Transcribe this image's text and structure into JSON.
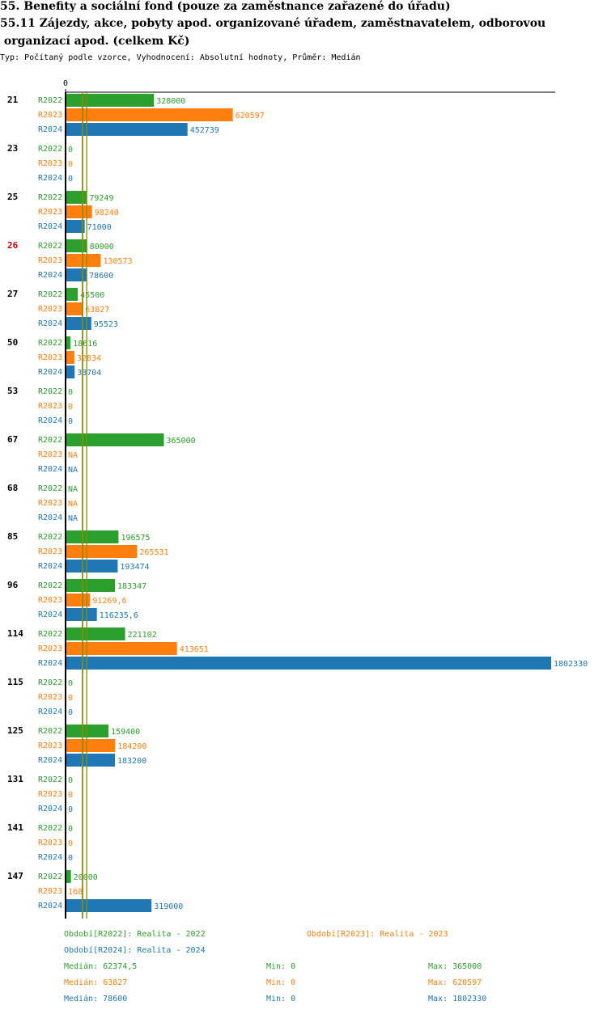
{
  "header": {
    "title_line1": "55. Benefity a sociální fond (pouze za zaměstnance zařazené do úřadu)",
    "title_line2": "55.11 Zájezdy, akce, pobyty apod. organizované úřadem, zaměstnavatelem, odborovou",
    "title_line3": " organizací apod. (celkem Kč)",
    "subtitle": "Typ: Počítaný podle vzorce, Vyhodnocení: Absolutní hodnoty, Průměr: Medián"
  },
  "colors": {
    "R2022": "#2ca02c",
    "R2023": "#ff7f0e",
    "R2024": "#1f77b4",
    "highlight": "#cc0000",
    "median_line": "#8c8c00"
  },
  "chart_data": {
    "type": "bar",
    "orientation": "horizontal",
    "x_tick_label": "0",
    "xlim": [
      0,
      1802330
    ],
    "highlighted_category": "26",
    "categories": [
      "21",
      "23",
      "25",
      "26",
      "27",
      "50",
      "53",
      "67",
      "68",
      "85",
      "96",
      "114",
      "115",
      "125",
      "131",
      "141",
      "147"
    ],
    "series": [
      {
        "name": "R2022",
        "values": [
          328000,
          0,
          79249,
          80000,
          45500,
          18616,
          0,
          365000,
          null,
          196575,
          183347,
          221102,
          0,
          159400,
          0,
          0,
          20000
        ],
        "labels": [
          "328000",
          "0",
          "79249",
          "80000",
          "45500",
          "18616",
          "0",
          "365000",
          "NA",
          "196575",
          "183347",
          "221102",
          "0",
          "159400",
          "0",
          "0",
          "20000"
        ]
      },
      {
        "name": "R2023",
        "values": [
          620597,
          0,
          98240,
          130573,
          63827,
          32834,
          0,
          null,
          null,
          265531,
          91269.6,
          413651,
          0,
          184200,
          0,
          0,
          168
        ],
        "labels": [
          "620597",
          "0",
          "98240",
          "130573",
          "63827",
          "32834",
          "0",
          "NA",
          "NA",
          "265531",
          "91269,6",
          "413651",
          "0",
          "184200",
          "0",
          "0",
          "168"
        ]
      },
      {
        "name": "R2024",
        "values": [
          452739,
          0,
          71000,
          78600,
          95523,
          33704,
          0,
          null,
          null,
          193474,
          116235.6,
          1802330,
          0,
          183200,
          0,
          0,
          319000
        ],
        "labels": [
          "452739",
          "0",
          "71000",
          "78600",
          "95523",
          "33704",
          "0",
          "NA",
          "NA",
          "193474",
          "116235,6",
          "1802330",
          "0",
          "183200",
          "0",
          "0",
          "319000"
        ]
      }
    ],
    "median_values": [
      62374.5,
      63827,
      78600
    ]
  },
  "legend": {
    "period_2022": "Období[R2022]: Realita - 2022",
    "period_2023": "Období[R2023]: Realita - 2023",
    "period_2024": "Období[R2024]: Realita - 2024",
    "stats": [
      {
        "series": "R2022",
        "median": "Medián: 62374,5",
        "min": "Min: 0",
        "max": "Max: 365000"
      },
      {
        "series": "R2023",
        "median": "Medián: 63827",
        "min": "Min: 0",
        "max": "Max: 620597"
      },
      {
        "series": "R2024",
        "median": "Medián: 78600",
        "min": "Min: 0",
        "max": "Max: 1802330"
      }
    ]
  }
}
